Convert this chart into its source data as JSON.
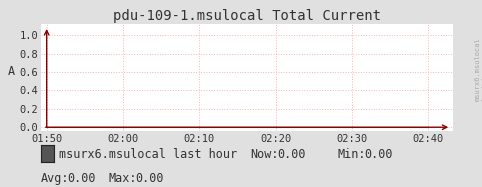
{
  "title": "pdu-109-1.msulocal Total Current",
  "ylabel": "A",
  "bg_color": "#e0e0e0",
  "plot_bg_color": "#ffffff",
  "grid_color": "#ffb0b0",
  "arrow_color": "#880000",
  "yticks": [
    0.0,
    0.2,
    0.4,
    0.6,
    0.8,
    1.0
  ],
  "xtick_labels": [
    "01:50",
    "02:00",
    "02:10",
    "02:20",
    "02:30",
    "02:40"
  ],
  "legend_label": "msurx6.msulocal last hour",
  "legend_box_color": "#555555",
  "now_val": "0.00",
  "min_val": "0.00",
  "avg_val": "0.00",
  "max_val": "0.00",
  "font_family": "monospace",
  "title_fontsize": 10,
  "tick_fontsize": 7.5,
  "legend_fontsize": 8.5,
  "right_label": "msurx6.msulocal\nlast hour",
  "right_label_color": "#aaaaaa",
  "text_color": "#333333"
}
